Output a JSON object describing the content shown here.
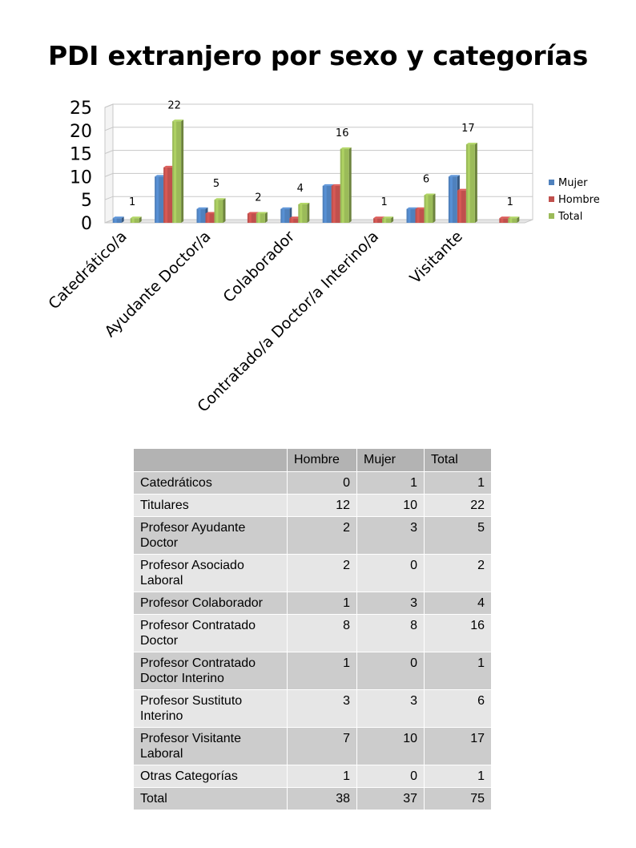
{
  "chart_data": {
    "type": "bar",
    "title": "PDI extranjero por sexo y categorías",
    "categories": [
      "Catedrático/a",
      "Titular",
      "Ayudante Doctor/a",
      "Asociado Laboral",
      "Colaborador",
      "Contratado/a Doctor/a",
      "Contratado/a Doctor/a Interino/a",
      "Sustituto Interino",
      "Visitante",
      "Otras"
    ],
    "visible_tick_labels": [
      "Catedrático/a",
      "Ayudante Doctor/a",
      "Colaborador",
      "Contratado/a Doctor/a Interino/a",
      "Visitante"
    ],
    "visible_tick_label_index": [
      0,
      2,
      4,
      6,
      8
    ],
    "series": [
      {
        "name": "Mujer",
        "color": "#4f81bd",
        "values": [
          1,
          10,
          3,
          0,
          3,
          8,
          0,
          3,
          10,
          0
        ]
      },
      {
        "name": "Hombre",
        "color": "#c0504d",
        "values": [
          0,
          12,
          2,
          2,
          1,
          8,
          1,
          3,
          7,
          1
        ]
      },
      {
        "name": "Total",
        "color": "#9bbb59",
        "values": [
          1,
          22,
          5,
          2,
          4,
          16,
          1,
          6,
          17,
          1
        ]
      }
    ],
    "data_labels_series": "Total",
    "yticks": [
      0,
      5,
      10,
      15,
      20,
      25
    ],
    "ylim": [
      0,
      25
    ],
    "grid": true,
    "legend": "right"
  },
  "table": {
    "headers": [
      "",
      "Hombre",
      "Mujer",
      "Total"
    ],
    "rows": [
      {
        "label": "Catedráticos",
        "values": [
          "0",
          "1",
          "1"
        ]
      },
      {
        "label": "Titulares",
        "values": [
          "12",
          "10",
          "22"
        ]
      },
      {
        "label": "Profesor Ayudante Doctor",
        "values": [
          "2",
          "3",
          "5"
        ]
      },
      {
        "label": "Profesor Asociado Laboral",
        "values": [
          "2",
          "0",
          "2"
        ]
      },
      {
        "label": "Profesor Colaborador",
        "values": [
          "1",
          "3",
          "4"
        ]
      },
      {
        "label": "Profesor Contratado Doctor",
        "values": [
          "8",
          "8",
          "16"
        ]
      },
      {
        "label": "Profesor Contratado Doctor Interino",
        "values": [
          "1",
          "0",
          "1"
        ]
      },
      {
        "label": "Profesor Sustituto Interino",
        "values": [
          "3",
          "3",
          "6"
        ]
      },
      {
        "label": "Profesor Visitante Laboral",
        "values": [
          "7",
          "10",
          "17"
        ]
      },
      {
        "label": "Otras Categorías",
        "values": [
          "1",
          "0",
          "1"
        ]
      }
    ],
    "total": {
      "label": "Total",
      "values": [
        "38",
        "37",
        "75"
      ]
    }
  }
}
